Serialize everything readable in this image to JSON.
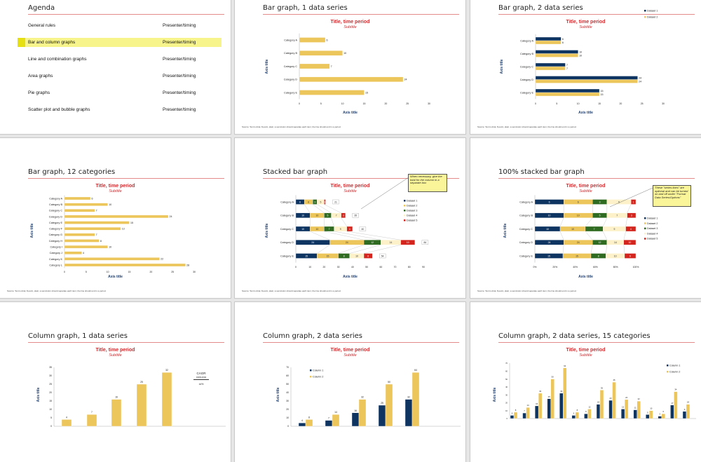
{
  "colors": {
    "navy": "#0e3462",
    "gold": "#ecc55b",
    "green": "#2f6b21",
    "cream": "#fcf1c8",
    "red": "#d3251d",
    "title_red": "#cf2a2e",
    "axis_navy": "#1f3e6e"
  },
  "slides": [
    {
      "title": "Agenda",
      "highlighted_index": 1,
      "items": [
        {
          "label": "General rules",
          "presenter": "Presenter/timing"
        },
        {
          "label": "Bar and column graphs",
          "presenter": "Presenter/timing"
        },
        {
          "label": "Line and combination graphs",
          "presenter": "Presenter/timing"
        },
        {
          "label": "Area graphs",
          "presenter": "Presenter/timing"
        },
        {
          "label": "Pie graphs",
          "presenter": "Presenter/timing"
        },
        {
          "label": "Scatter plot and bubble graphs",
          "presenter": "Presenter/timing"
        }
      ]
    },
    {
      "title": "Bar graph, 1 data series",
      "chart_title": "Title, time period",
      "subtitle": "Subtitle",
      "x_axis_title": "Axis title",
      "y_axis_title": "Axis title",
      "source": "Source: Text is Arial, 8-point, plain; a semicolon should separate each item; the line should end in a period."
    },
    {
      "title": "Bar graph, 2 data series",
      "chart_title": "Title, time period",
      "subtitle": "Subtitle",
      "x_axis_title": "Axis title",
      "y_axis_title": "Axis title",
      "source": "Source: Text is Arial, 8-point, plain; a semicolon should separate each item; the line should end in a period."
    },
    {
      "title": "Bar graph, 12 categories",
      "chart_title": "Title, time period",
      "subtitle": "Subtitle",
      "x_axis_title": "Axis title",
      "y_axis_title": "Axis title",
      "source": "Source: Text is Arial, 8-point, plain; a semicolon should separate each item; the line should end in a period."
    },
    {
      "title": "Stacked bar graph",
      "chart_title": "Title, time period",
      "subtitle": "Subtitle",
      "x_axis_title": "Axis title",
      "y_axis_title": "Axis title",
      "source": "Source: Text is Arial, 8-point, plain; a semicolon should separate each item; the line should end in a period.",
      "callout": "When necessary, give the total for the column in a separate box"
    },
    {
      "title": "100% stacked bar graph",
      "chart_title": "Title, time period",
      "subtitle": "Subtitle",
      "x_axis_title": "Axis title",
      "y_axis_title": "Axis title",
      "source": "Source: Text is Arial, 8-point, plain; a semicolon should separate each item; the line should end in a period.",
      "callout": "These \"series lines\" are optional and can be turned on and off under \"Format Data Series/Options\""
    },
    {
      "title": "Column graph, 1 data series",
      "chart_title": "Title, time period",
      "subtitle": "Subtitle",
      "y_axis_title": "Axis title",
      "cagr": {
        "label": "CAGR",
        "period": "1998-2002",
        "value": "xx%"
      }
    },
    {
      "title": "Column graph, 2 data series",
      "chart_title": "Title, time period",
      "subtitle": "Subtitle",
      "y_axis_title": "Axis title"
    },
    {
      "title": "Column graph, 2 data series, 15 categories",
      "chart_title": "Title, time period",
      "subtitle": "Subtitle",
      "y_axis_title": "Axis title"
    }
  ],
  "chart_data": [
    {
      "id": "bar1",
      "type": "bar",
      "orientation": "horizontal",
      "categories": [
        "Category A",
        "Category B",
        "Category C",
        "Category D",
        "Category E"
      ],
      "series": [
        {
          "values": [
            6,
            10,
            7,
            24,
            15
          ],
          "color": "gold"
        }
      ],
      "xlim": [
        0,
        30
      ],
      "xticks": [
        "0",
        "5",
        "10",
        "15",
        "20",
        "25",
        "30"
      ],
      "xlabel": "Axis title",
      "ylabel": "Axis title"
    },
    {
      "id": "bar2",
      "type": "bar",
      "orientation": "horizontal",
      "categories": [
        "Category A",
        "Category B",
        "Category C",
        "Category D",
        "Category E"
      ],
      "series": [
        {
          "name": "Dataset 1",
          "values": [
            6,
            10,
            7,
            24,
            15
          ],
          "color": "navy"
        },
        {
          "name": "Dataset 2",
          "values": [
            6,
            10,
            7,
            24,
            15
          ],
          "color": "gold"
        }
      ],
      "xlim": [
        0,
        30
      ],
      "xticks": [
        "0",
        "5",
        "10",
        "15",
        "20",
        "25",
        "30"
      ],
      "legend": "top-right"
    },
    {
      "id": "bar12",
      "type": "bar",
      "orientation": "horizontal",
      "categories": [
        "Category A",
        "Category B",
        "Category C",
        "Category D",
        "Category E",
        "Category F",
        "Category G",
        "Category H",
        "Category I",
        "Category J",
        "Category K",
        "Category L"
      ],
      "series": [
        {
          "values": [
            6,
            10,
            7,
            24,
            15,
            13,
            7,
            8,
            10,
            4,
            22,
            28
          ],
          "color": "gold"
        }
      ],
      "xlim": [
        0,
        30
      ],
      "xticks": [
        "0",
        "5",
        "10",
        "15",
        "20",
        "25",
        "30"
      ]
    },
    {
      "id": "stack",
      "type": "bar",
      "stacked": true,
      "orientation": "horizontal",
      "categories": [
        "Category A",
        "Category B",
        "Category C",
        "Category D",
        "Category E"
      ],
      "series": [
        {
          "name": "Dataset 1",
          "values": [
            6,
            10,
            10,
            24,
            15
          ],
          "color": "navy"
        },
        {
          "name": "Dataset 2",
          "values": [
            6,
            10,
            10,
            24,
            15
          ],
          "color": "gold"
        },
        {
          "name": "Dataset 3",
          "values": [
            3,
            5,
            7,
            12,
            8
          ],
          "color": "green"
        },
        {
          "name": "Dataset 4",
          "values": [
            5,
            7,
            9,
            14,
            10
          ],
          "color": "cream"
        },
        {
          "name": "Dataset 5",
          "values": [
            1,
            3,
            4,
            10,
            6
          ],
          "color": "red"
        }
      ],
      "totals": [
        "21",
        "35",
        "40",
        "84",
        "54"
      ],
      "xlim": [
        0,
        90
      ],
      "xticks": [
        "0",
        "10",
        "20",
        "30",
        "40",
        "50",
        "60",
        "70",
        "80",
        "90"
      ],
      "legend": "right"
    },
    {
      "id": "pct",
      "type": "bar",
      "stacked": "percent",
      "orientation": "horizontal",
      "categories": [
        "Category A",
        "Category B",
        "Category C",
        "Category D",
        "Category E"
      ],
      "series": [
        {
          "name": "Dataset 1",
          "values": [
            6,
            10,
            10,
            24,
            15
          ],
          "color": "navy"
        },
        {
          "name": "Dataset 2",
          "values": [
            6,
            10,
            10,
            24,
            15
          ],
          "color": "gold"
        },
        {
          "name": "Dataset 3",
          "values": [
            3,
            5,
            7,
            12,
            8
          ],
          "color": "green"
        },
        {
          "name": "Dataset 4",
          "values": [
            5,
            7,
            9,
            14,
            10
          ],
          "color": "cream"
        },
        {
          "name": "Dataset 5",
          "values": [
            1,
            3,
            4,
            10,
            6
          ],
          "color": "red"
        }
      ],
      "xlim": [
        0,
        100
      ],
      "xticks": [
        "0%",
        "20%",
        "40%",
        "60%",
        "80%",
        "100%"
      ],
      "legend": "right"
    },
    {
      "id": "col1",
      "type": "bar",
      "orientation": "vertical",
      "series": [
        {
          "values": [
            4,
            7,
            16,
            25,
            32
          ],
          "color": "gold"
        }
      ],
      "ylim": [
        0,
        35
      ],
      "yticks": [
        "0",
        "5",
        "10",
        "15",
        "20",
        "25",
        "30",
        "35"
      ]
    },
    {
      "id": "col2",
      "type": "bar",
      "orientation": "vertical",
      "series": [
        {
          "name": "Column 1",
          "values": [
            4,
            7,
            16,
            25,
            32
          ],
          "color": "navy"
        },
        {
          "name": "Column 2",
          "values": [
            8,
            14,
            32,
            50,
            64
          ],
          "color": "gold"
        }
      ],
      "ylim": [
        0,
        70
      ],
      "yticks": [
        "0",
        "10",
        "20",
        "30",
        "40",
        "50",
        "60",
        "70"
      ],
      "legend": "top-left"
    },
    {
      "id": "col15",
      "type": "bar",
      "orientation": "vertical",
      "series": [
        {
          "name": "Column 1",
          "values": [
            4,
            7,
            16,
            25,
            32,
            4,
            6,
            18,
            23,
            12,
            11,
            5,
            3,
            17,
            9
          ],
          "color": "navy"
        },
        {
          "name": "Column 2",
          "values": [
            8,
            14,
            32,
            50,
            64,
            8,
            12,
            36,
            46,
            24,
            22,
            10,
            6,
            34,
            18
          ],
          "color": "gold"
        }
      ],
      "ylim": [
        0,
        70
      ],
      "yticks": [
        "0",
        "10",
        "20",
        "30",
        "40",
        "50",
        "60",
        "70"
      ],
      "legend": "top-right"
    }
  ]
}
